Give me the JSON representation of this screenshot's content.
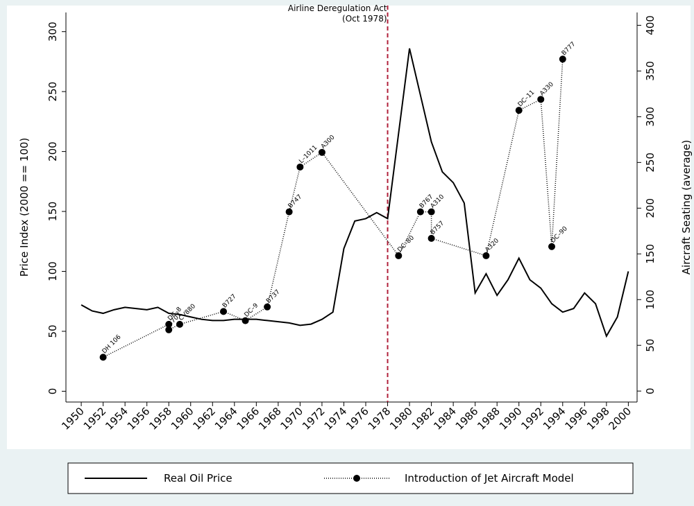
{
  "chart_data": {
    "type": "line",
    "x": [
      1950,
      1951,
      1952,
      1953,
      1954,
      1955,
      1956,
      1957,
      1958,
      1959,
      1960,
      1961,
      1962,
      1963,
      1964,
      1965,
      1966,
      1967,
      1968,
      1969,
      1970,
      1971,
      1972,
      1973,
      1974,
      1975,
      1976,
      1977,
      1978,
      1979,
      1980,
      1981,
      1982,
      1983,
      1984,
      1985,
      1986,
      1987,
      1988,
      1989,
      1990,
      1991,
      1992,
      1993,
      1994,
      1995,
      1996,
      1997,
      1998,
      1999,
      2000
    ],
    "series": [
      {
        "name": "Real Oil Price",
        "color": "#000000",
        "values": [
          72,
          67,
          65,
          68,
          70,
          69,
          68,
          70,
          65,
          64,
          62,
          60,
          59,
          59,
          60,
          60,
          60,
          59,
          58,
          57,
          55,
          56,
          60,
          66,
          119,
          142,
          144,
          149,
          144,
          215,
          286,
          247,
          208,
          183,
          174,
          157,
          82,
          98,
          80,
          93,
          111,
          93,
          86,
          73,
          66,
          69,
          82,
          73,
          46,
          62,
          100
        ]
      },
      {
        "name": "Introduction of Jet Aircraft Model",
        "color": "#000000",
        "type": "scatter",
        "axis": "y2",
        "x": [
          1952,
          1958,
          1958,
          1959,
          1963,
          1965,
          1967,
          1969,
          1970,
          1972,
          1979,
          1981,
          1982,
          1982,
          1987,
          1990,
          1992,
          1993,
          1994
        ],
        "values": [
          37,
          73,
          67,
          73,
          87,
          77,
          92,
          196,
          245,
          261,
          148,
          196,
          196,
          167,
          148,
          307,
          319,
          158,
          363
        ],
        "labels": [
          "DH 106",
          "DC–8",
          "B707",
          "CV880",
          "B727",
          "DC–9",
          "B737",
          "B747",
          "L–1011",
          "A300",
          "DC–80",
          "B767",
          "A310",
          "B757",
          "A320",
          "DC–11",
          "A330",
          "DC–90",
          "B777"
        ]
      }
    ],
    "annotation": {
      "lines": [
        "Airline Deregulation Act",
        "(Oct 1978)"
      ],
      "x": 1978,
      "color": "#b0203a"
    },
    "ylabel": "Price Index (2000 == 100)",
    "y2label": "Aircraft Seating (average)",
    "xlim": [
      1948.6,
      2000.8
    ],
    "xticks": [
      1950,
      1952,
      1954,
      1956,
      1958,
      1960,
      1962,
      1964,
      1966,
      1968,
      1970,
      1972,
      1974,
      1976,
      1978,
      1980,
      1982,
      1984,
      1986,
      1988,
      1990,
      1992,
      1994,
      1996,
      1998,
      2000
    ],
    "ylim": [
      -9,
      316
    ],
    "yticks": [
      0,
      50,
      100,
      150,
      200,
      250,
      300
    ],
    "y2lim": [
      -12,
      414
    ],
    "y2ticks": [
      0,
      50,
      100,
      150,
      200,
      250,
      300,
      350,
      400
    ],
    "grid": false
  }
}
